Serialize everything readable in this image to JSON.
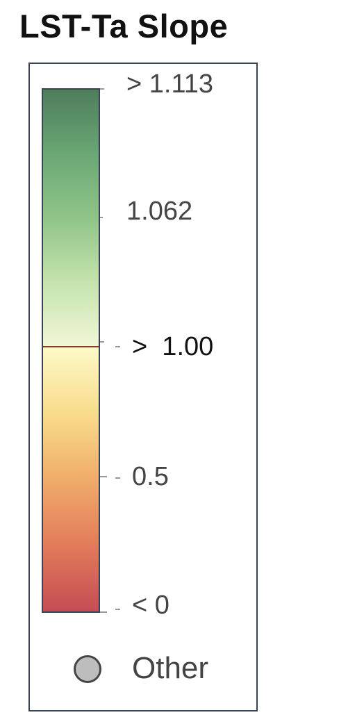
{
  "chart_data": {
    "type": "colorbar-legend",
    "title": "LST-Ta Slope",
    "ticks": [
      {
        "value": 1.113,
        "label": "> 1.113"
      },
      {
        "value": 1.062,
        "label": "1.062"
      },
      {
        "value": 1.0,
        "label": ">  1.00"
      },
      {
        "value": 0.5,
        "label": "0.5"
      },
      {
        "value": 0,
        "label": "< 0"
      }
    ],
    "upper_segment": {
      "from": 1.0,
      "to": 1.113,
      "colors": [
        "#f1f6d6",
        "#c4e3ad",
        "#8fc488",
        "#6aa775",
        "#4f7d5a"
      ]
    },
    "lower_segment": {
      "from": 0,
      "to": 1.0,
      "colors": [
        "#c44d55",
        "#e27b5a",
        "#f0ac6a",
        "#f8dc8c",
        "#fdf9c8"
      ]
    },
    "other": {
      "label": "Other",
      "color": "#bdbdbd"
    }
  }
}
